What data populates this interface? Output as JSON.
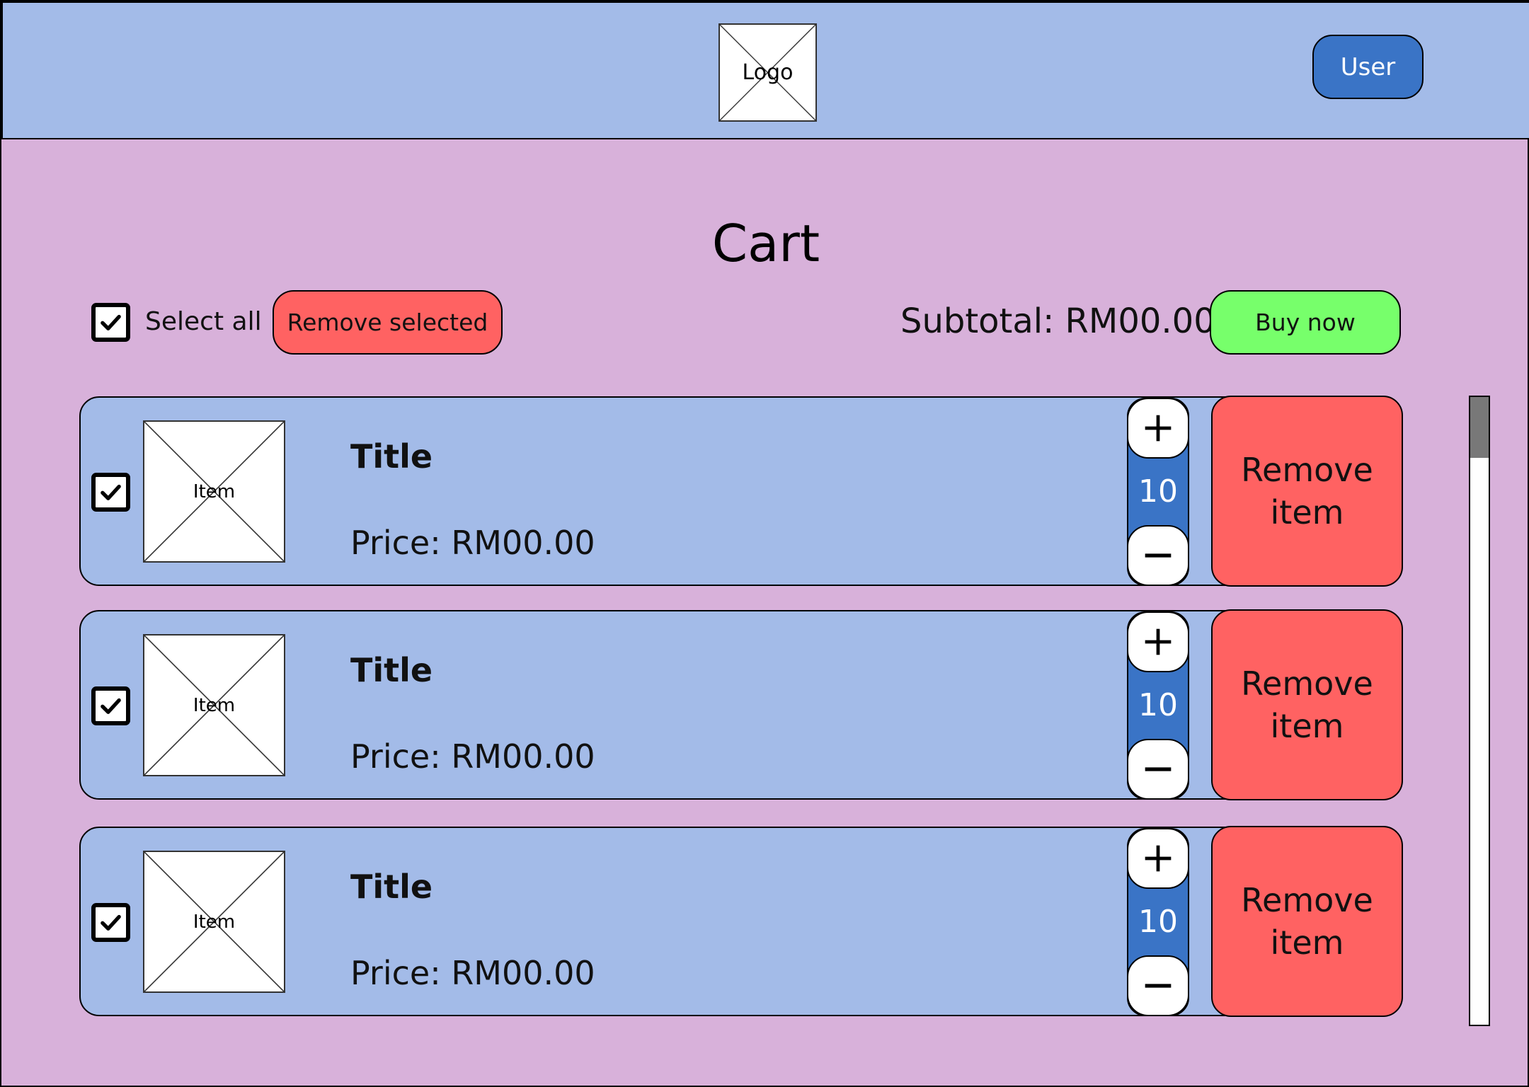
{
  "header": {
    "logo_label": "Logo",
    "user_label": "User"
  },
  "page": {
    "title": "Cart"
  },
  "toolbar": {
    "select_all_checked": true,
    "select_all_label": "Select all",
    "remove_selected_label": "Remove selected",
    "subtotal_label": "Subtotal: ",
    "subtotal_value": "RM00.00",
    "buy_now_label": "Buy now"
  },
  "cart": {
    "items": [
      {
        "checked": true,
        "image_label": "Item",
        "title": "Title",
        "price": "Price: RM00.00",
        "quantity": "10",
        "remove_label": "Remove item"
      },
      {
        "checked": true,
        "image_label": "Item",
        "title": "Title",
        "price": "Price: RM00.00",
        "quantity": "10",
        "remove_label": "Remove item"
      },
      {
        "checked": true,
        "image_label": "Item",
        "title": "Title",
        "price": "Price: RM00.00",
        "quantity": "10",
        "remove_label": "Remove item"
      }
    ]
  },
  "icons": {
    "check": "check-icon",
    "plus": "plus-icon",
    "minus": "minus-icon",
    "placeholder": "image-placeholder-icon"
  },
  "colors": {
    "page_background": "#d8b1da",
    "header_background": "#a3bbe8",
    "row_background": "#a3bbe8",
    "primary_blue": "#3a74c6",
    "danger_red": "#ff6262",
    "success_green": "#77ff6b",
    "scroll_thumb": "#787878"
  }
}
